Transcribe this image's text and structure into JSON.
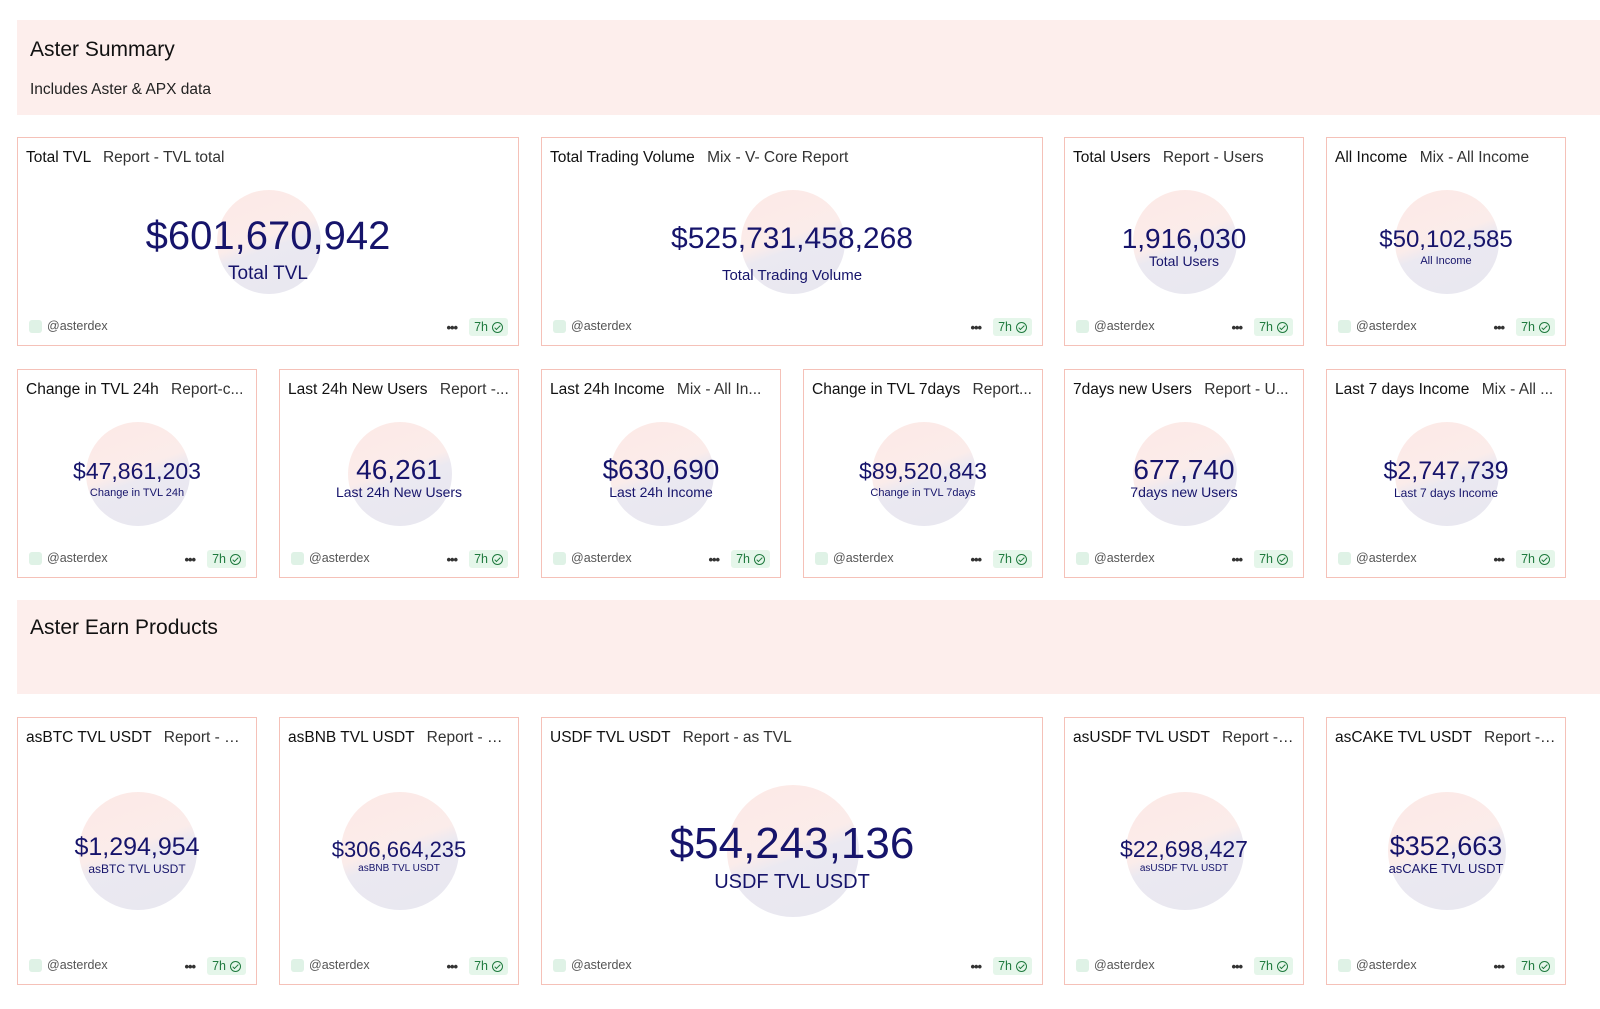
{
  "sections": {
    "summary": {
      "title": "Aster Summary",
      "subtitle": "Includes Aster & APX data"
    },
    "earn": {
      "title": "Aster Earn Products"
    }
  },
  "cards": [
    {
      "title": "Total TVL",
      "query": "Report - TVL total",
      "value": "$601,670,942",
      "label": "Total TVL",
      "user": "@asterdex",
      "age": "7h"
    },
    {
      "title": "Total Trading Volume",
      "query": "Mix - V- Core Report",
      "value": "$525,731,458,268",
      "label": "Total Trading Volume",
      "user": "@asterdex",
      "age": "7h"
    },
    {
      "title": "Total Users",
      "query": "Report - Users",
      "value": "1,916,030",
      "label": "Total Users",
      "user": "@asterdex",
      "age": "7h"
    },
    {
      "title": "All Income",
      "query": "Mix - All Income",
      "value": "$50,102,585",
      "label": "All Income",
      "user": "@asterdex",
      "age": "7h"
    },
    {
      "title": "Change in TVL 24h",
      "query": "Report-c...",
      "value": "$47,861,203",
      "label": "Change in TVL 24h",
      "user": "@asterdex",
      "age": "7h"
    },
    {
      "title": "Last 24h New Users",
      "query": "Report -...",
      "value": "46,261",
      "label": "Last 24h New Users",
      "user": "@asterdex",
      "age": "7h"
    },
    {
      "title": "Last 24h Income",
      "query": "Mix - All In...",
      "value": "$630,690",
      "label": "Last 24h Income",
      "user": "@asterdex",
      "age": "7h"
    },
    {
      "title": "Change in TVL 7days",
      "query": "Report...",
      "value": "$89,520,843",
      "label": "Change in TVL 7days",
      "user": "@asterdex",
      "age": "7h"
    },
    {
      "title": "7days new Users",
      "query": "Report - U...",
      "value": "677,740",
      "label": "7days new Users",
      "user": "@asterdex",
      "age": "7h"
    },
    {
      "title": "Last 7 days Income",
      "query": "Mix - All ...",
      "value": "$2,747,739",
      "label": "Last 7 days Income",
      "user": "@asterdex",
      "age": "7h"
    },
    {
      "title": "asBTC TVL USDT",
      "query": "Report - as ...",
      "value": "$1,294,954",
      "label": "asBTC TVL USDT",
      "user": "@asterdex",
      "age": "7h"
    },
    {
      "title": "asBNB TVL USDT",
      "query": "Report - as...",
      "value": "$306,664,235",
      "label": "asBNB TVL USDT",
      "user": "@asterdex",
      "age": "7h"
    },
    {
      "title": "USDF TVL USDT",
      "query": "Report - as TVL",
      "value": "$54,243,136",
      "label": "USDF TVL USDT",
      "user": "@asterdex",
      "age": "7h"
    },
    {
      "title": "asUSDF TVL USDT",
      "query": "Report - a...",
      "value": "$22,698,427",
      "label": "asUSDF TVL USDT",
      "user": "@asterdex",
      "age": "7h"
    },
    {
      "title": "asCAKE TVL USDT",
      "query": "Report - a...",
      "value": "$352,663",
      "label": "asCAKE TVL USDT",
      "user": "@asterdex",
      "age": "7h"
    }
  ],
  "colors": {
    "accent": "#16146b",
    "header_bg": "#fdeeec",
    "card_border": "#f5c1b8",
    "badge_bg": "#e5f6ea",
    "badge_fg": "#1f7a3e"
  },
  "icons": {
    "menu": "more-dots-icon",
    "fresh": "check-circle-icon"
  }
}
